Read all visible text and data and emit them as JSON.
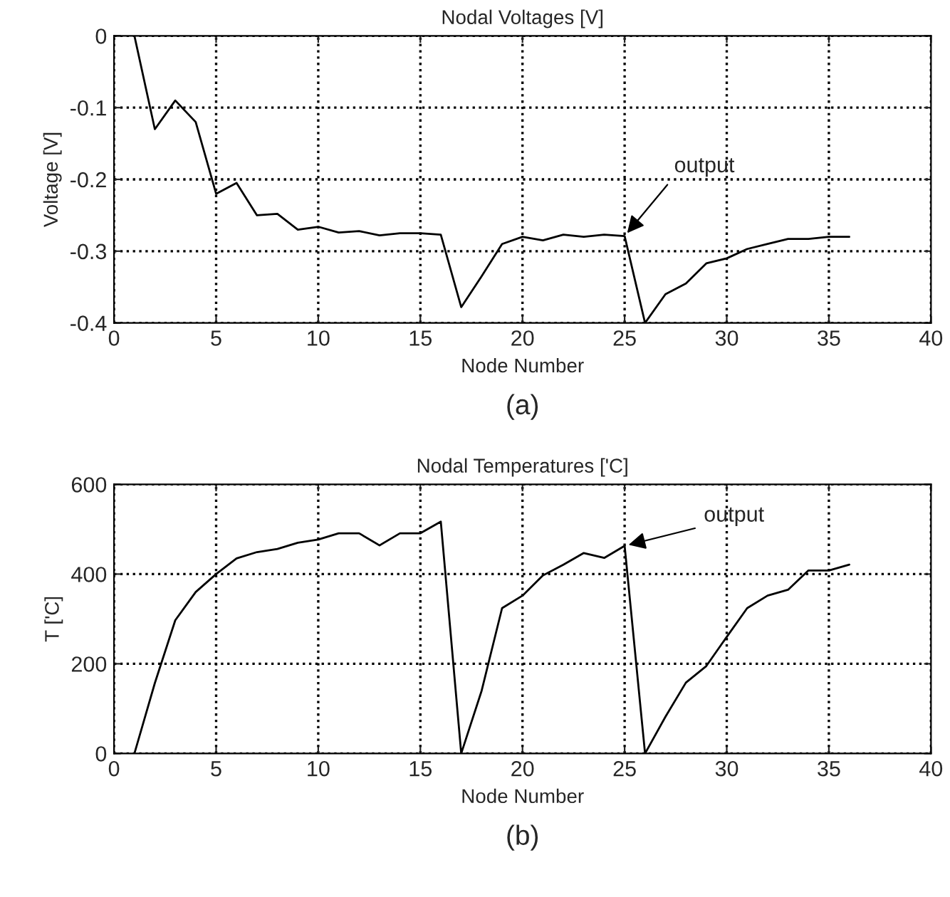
{
  "chart_data": [
    {
      "type": "line",
      "title": "Nodal Voltages [V]",
      "xlabel": "Node Number",
      "ylabel": "Voltage [V]",
      "x": [
        1,
        2,
        3,
        4,
        5,
        6,
        7,
        8,
        9,
        10,
        11,
        12,
        13,
        14,
        15,
        16,
        17,
        18,
        19,
        20,
        21,
        22,
        23,
        24,
        25,
        26,
        27,
        28,
        29,
        30,
        31,
        32,
        33,
        34,
        35,
        36
      ],
      "series": [
        {
          "color": "#000000",
          "values": [
            0,
            -0.13,
            -0.09,
            -0.12,
            -0.22,
            -0.205,
            -0.25,
            -0.248,
            -0.27,
            -0.266,
            -0.274,
            -0.272,
            -0.278,
            -0.275,
            -0.275,
            -0.277,
            -0.378,
            -0.335,
            -0.29,
            -0.28,
            -0.285,
            -0.277,
            -0.28,
            -0.277,
            -0.279,
            -0.4,
            -0.36,
            -0.345,
            -0.317,
            -0.31,
            -0.297,
            -0.29,
            -0.283,
            -0.283,
            -0.28,
            -0.28
          ]
        }
      ],
      "xlim": [
        0,
        40
      ],
      "xticks": [
        0,
        5,
        10,
        15,
        20,
        25,
        30,
        35,
        40
      ],
      "ylim": [
        -0.4,
        0
      ],
      "yticks": [
        -0.4,
        -0.3,
        -0.2,
        -0.1,
        0
      ],
      "grid": true,
      "marker": "none",
      "annotations": [
        {
          "text": "output",
          "x": 25,
          "y": -0.279
        },
        "(a)"
      ]
    },
    {
      "type": "line",
      "title": "Nodal Temperatures ['C]",
      "xlabel": "Node Number",
      "ylabel": "T ['C]",
      "x": [
        1,
        2,
        3,
        4,
        5,
        6,
        7,
        8,
        9,
        10,
        11,
        12,
        13,
        14,
        15,
        16,
        17,
        18,
        19,
        20,
        21,
        22,
        23,
        24,
        25,
        26,
        27,
        28,
        29,
        30,
        31,
        32,
        33,
        34,
        35,
        36
      ],
      "series": [
        {
          "color": "#000000",
          "values": [
            0,
            157,
            297,
            360,
            400,
            435,
            449,
            456,
            470,
            477,
            491,
            491,
            464,
            491,
            491,
            517,
            0,
            140,
            324,
            352,
            397,
            421,
            447,
            436,
            463,
            0,
            82,
            158,
            195,
            260,
            324,
            352,
            365,
            408,
            408,
            421
          ]
        }
      ],
      "xlim": [
        0,
        40
      ],
      "xticks": [
        0,
        5,
        10,
        15,
        20,
        25,
        30,
        35,
        40
      ],
      "ylim": [
        0,
        600
      ],
      "yticks": [
        0,
        200,
        400,
        600
      ],
      "grid": true,
      "marker": "none",
      "annotations": [
        {
          "text": "output",
          "x": 25,
          "y": 463
        },
        "(b)"
      ]
    }
  ]
}
